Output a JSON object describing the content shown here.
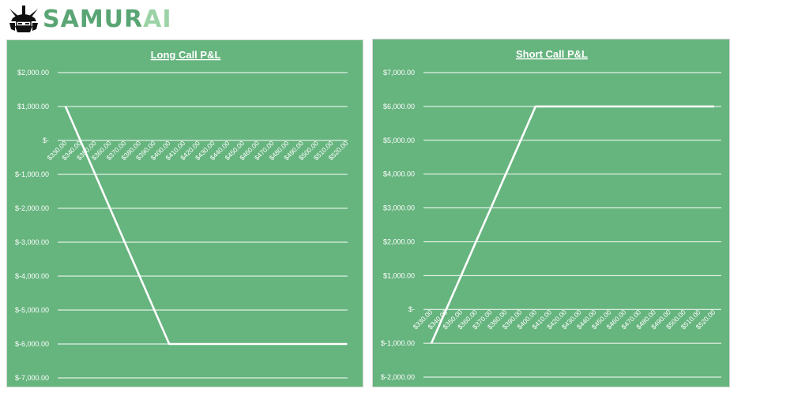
{
  "brand": {
    "name_part1": "SAMUR",
    "name_part2": "AI"
  },
  "colors": {
    "panel_bg": "#66b47e",
    "line": "#ffffff",
    "gridline": "#ffffff",
    "brand_dark": "#5aa574",
    "brand_light": "#9bd3a6"
  },
  "chart_data": [
    {
      "type": "line",
      "title": "Long Call P&L",
      "xlabel": "",
      "ylabel": "",
      "x": [
        330,
        340,
        350,
        360,
        370,
        380,
        390,
        400,
        410,
        420,
        430,
        440,
        450,
        460,
        470,
        480,
        490,
        500,
        510,
        520
      ],
      "x_tick_labels": [
        "$330.00",
        "$340.00",
        "$350.00",
        "$360.00",
        "$370.00",
        "$380.00",
        "$390.00",
        "$400.00",
        "$410.00",
        "$420.00",
        "$430.00",
        "$440.00",
        "$450.00",
        "$460.00",
        "$470.00",
        "$480.00",
        "$490.00",
        "$500.00",
        "$510.00",
        "$520.00"
      ],
      "series": [
        {
          "values": [
            1000,
            0,
            -1000,
            -2000,
            -3000,
            -4000,
            -5000,
            -6000,
            -6000,
            -6000,
            -6000,
            -6000,
            -6000,
            -6000,
            -6000,
            -6000,
            -6000,
            -6000,
            -6000,
            -6000
          ]
        }
      ],
      "ylim": [
        -7000,
        2000
      ],
      "y_ticks": [
        2000,
        1000,
        0,
        -1000,
        -2000,
        -3000,
        -4000,
        -5000,
        -6000,
        -7000
      ],
      "y_tick_labels": [
        "$2,000.00",
        "$1,000.00",
        "$-",
        "$-1,000.00",
        "$-2,000.00",
        "$-3,000.00",
        "$-4,000.00",
        "$-5,000.00",
        "$-6,000.00",
        "$-7,000.00"
      ],
      "grid": true,
      "legend": "none"
    },
    {
      "type": "line",
      "title": "Short Call P&L",
      "xlabel": "",
      "ylabel": "",
      "x": [
        330,
        340,
        350,
        360,
        370,
        380,
        390,
        400,
        410,
        420,
        430,
        440,
        450,
        460,
        470,
        480,
        490,
        500,
        510,
        520
      ],
      "x_tick_labels": [
        "$330.00",
        "$340.00",
        "$350.00",
        "$360.00",
        "$370.00",
        "$380.00",
        "$390.00",
        "$400.00",
        "$410.00",
        "$420.00",
        "$430.00",
        "$440.00",
        "$450.00",
        "$460.00",
        "$470.00",
        "$480.00",
        "$490.00",
        "$500.00",
        "$510.00",
        "$520.00"
      ],
      "series": [
        {
          "values": [
            -1000,
            0,
            1000,
            2000,
            3000,
            4000,
            5000,
            6000,
            6000,
            6000,
            6000,
            6000,
            6000,
            6000,
            6000,
            6000,
            6000,
            6000,
            6000,
            6000
          ]
        }
      ],
      "ylim": [
        -2000,
        7000
      ],
      "y_ticks": [
        7000,
        6000,
        5000,
        4000,
        3000,
        2000,
        1000,
        0,
        -1000,
        -2000
      ],
      "y_tick_labels": [
        "$7,000.00",
        "$6,000.00",
        "$5,000.00",
        "$4,000.00",
        "$3,000.00",
        "$2,000.00",
        "$1,000.00",
        "$-",
        "$-1,000.00",
        "$-2,000.00"
      ],
      "grid": true,
      "legend": "none"
    }
  ]
}
